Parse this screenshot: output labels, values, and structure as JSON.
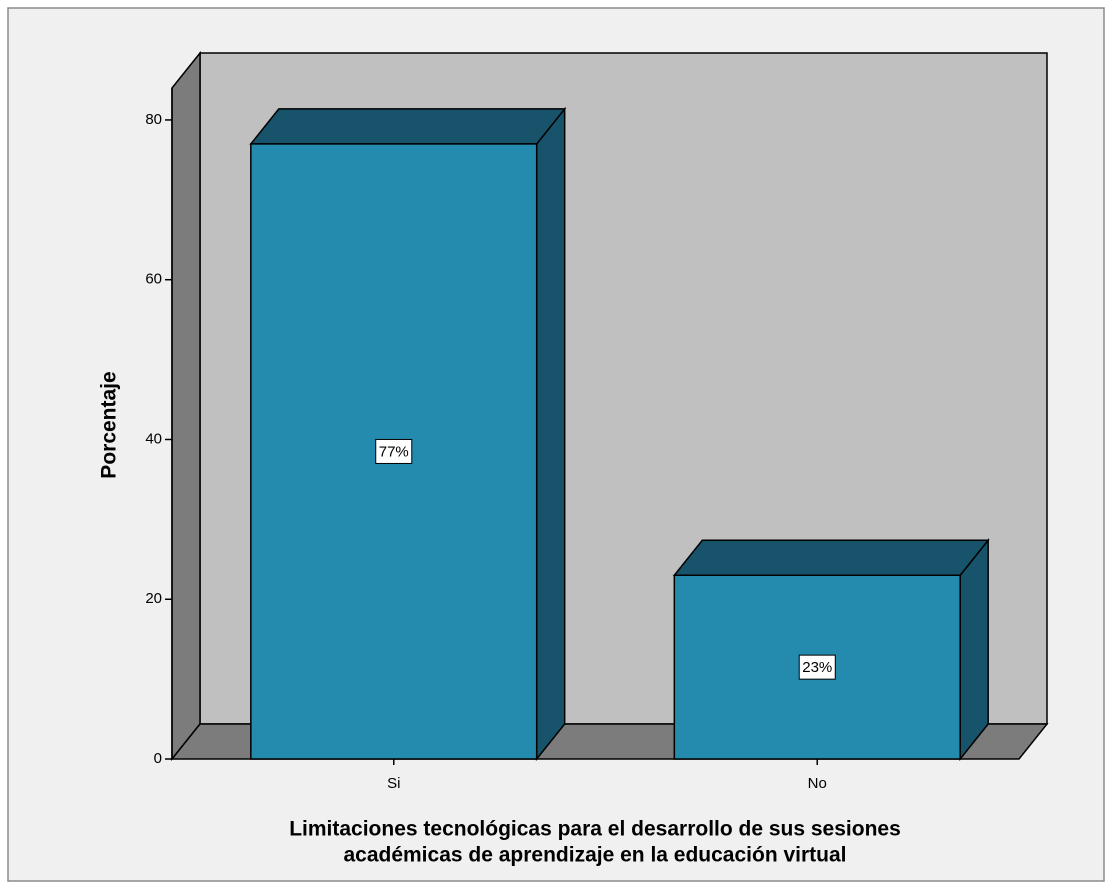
{
  "chart_data": {
    "type": "bar",
    "categories": [
      "Si",
      "No"
    ],
    "values": [
      77,
      23
    ],
    "value_labels": [
      "77%",
      "23%"
    ],
    "ylabel": "Porcentaje",
    "xlabel": [
      "Limitaciones tecnológicas para el desarrollo de sus sesiones",
      "académicas de aprendizaje en la educación virtual"
    ],
    "ylim": [
      0,
      84
    ],
    "yticks": [
      0,
      20,
      40,
      60,
      80
    ],
    "color": "#248bae",
    "shade_color": "#17536b",
    "grid": false
  }
}
